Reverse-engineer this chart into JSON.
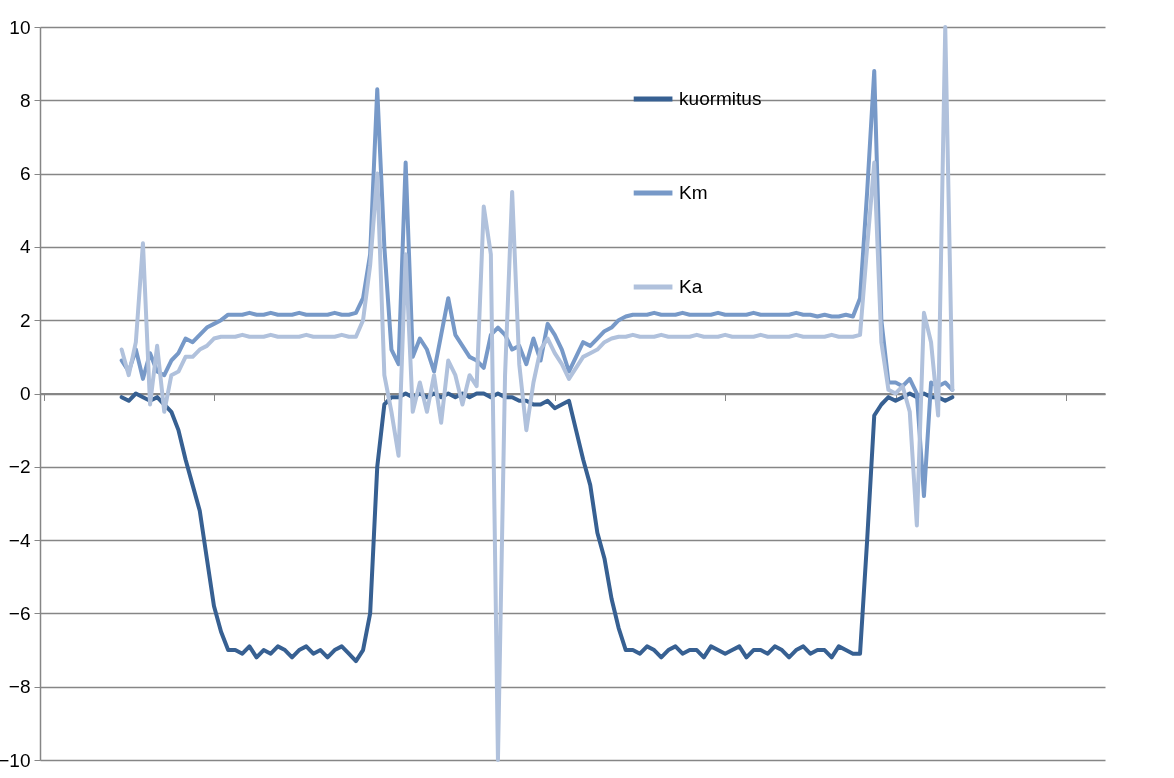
{
  "chart_data": {
    "type": "line",
    "categories": [
      null,
      null,
      null,
      null,
      null,
      null,
      null,
      null,
      null,
      null,
      null,
      null,
      null,
      null,
      null,
      null,
      null,
      null,
      null,
      null,
      null,
      null,
      null,
      null,
      null,
      null,
      null,
      null,
      null,
      null,
      null,
      null,
      null,
      null,
      null,
      null,
      null,
      null,
      null,
      null,
      null,
      null,
      null,
      null,
      null,
      null,
      null,
      null,
      null,
      null,
      null,
      null,
      null,
      null,
      null,
      null,
      null,
      null,
      null,
      null,
      null,
      null,
      null,
      null,
      null,
      null,
      null,
      null,
      null,
      null,
      null,
      null,
      null,
      null,
      null,
      null,
      null,
      null,
      null,
      null,
      null,
      null,
      null,
      null,
      null,
      null,
      null,
      null,
      null,
      null,
      null,
      null,
      null,
      null,
      null,
      null,
      null,
      null,
      null,
      null,
      null,
      null,
      null,
      null,
      null,
      null,
      null,
      null,
      null,
      null,
      null,
      null,
      null,
      null,
      null,
      null,
      null,
      null,
      null,
      null,
      null,
      null,
      null,
      null,
      null,
      null,
      null,
      null,
      null,
      null,
      null,
      null,
      null,
      null,
      null,
      null,
      null,
      null,
      null,
      null,
      null,
      null,
      null,
      null,
      null,
      null,
      null,
      null,
      null,
      null
    ],
    "series": [
      {
        "name": "kuormitus",
        "color": "#376092",
        "values": [
          null,
          null,
          null,
          null,
          null,
          null,
          null,
          null,
          null,
          null,
          null,
          -0.1,
          -0.2,
          0,
          -0.1,
          -0.2,
          -0.1,
          -0.3,
          -0.5,
          -1.0,
          -1.8,
          -2.5,
          -3.2,
          -4.5,
          -5.8,
          -6.5,
          -7.0,
          -7.0,
          -7.1,
          -6.9,
          -7.2,
          -7.0,
          -7.1,
          -6.9,
          -7.0,
          -7.2,
          -7.0,
          -6.9,
          -7.1,
          -7.0,
          -7.2,
          -7.0,
          -6.9,
          -7.1,
          -7.3,
          -7.0,
          -6.0,
          -2.0,
          -0.3,
          -0.1,
          -0.1,
          0,
          -0.1,
          0,
          -0.1,
          0,
          -0.1,
          0,
          -0.1,
          0,
          -0.1,
          0,
          0,
          -0.1,
          0,
          -0.1,
          -0.1,
          -0.2,
          -0.2,
          -0.3,
          -0.3,
          -0.2,
          -0.4,
          -0.3,
          -0.2,
          -1.0,
          -1.8,
          -2.5,
          -3.8,
          -4.5,
          -5.6,
          -6.4,
          -7.0,
          -7.0,
          -7.1,
          -6.9,
          -7.0,
          -7.2,
          -7.0,
          -6.9,
          -7.1,
          -7.0,
          -7.0,
          -7.2,
          -6.9,
          -7.0,
          -7.1,
          -7.0,
          -6.9,
          -7.2,
          -7.0,
          -7.0,
          -7.1,
          -6.9,
          -7.0,
          -7.2,
          -7.0,
          -6.9,
          -7.1,
          -7.0,
          -7.0,
          -7.2,
          -6.9,
          -7.0,
          -7.1,
          -7.1,
          -4.0,
          -0.6,
          -0.3,
          -0.1,
          -0.2,
          -0.1,
          0,
          -0.1,
          0,
          -0.1,
          -0.1,
          -0.2,
          -0.1,
          null,
          null,
          null,
          null,
          null,
          null,
          null,
          null,
          null,
          null,
          null,
          null,
          null,
          null,
          null,
          null,
          null,
          null,
          null,
          null,
          null
        ]
      },
      {
        "name": "Km",
        "color": "#7799c8",
        "values": [
          null,
          null,
          null,
          null,
          null,
          null,
          null,
          null,
          null,
          null,
          null,
          0.9,
          0.6,
          1.2,
          0.4,
          1.1,
          0.6,
          0.5,
          0.9,
          1.1,
          1.5,
          1.4,
          1.6,
          1.8,
          1.9,
          2.0,
          2.15,
          2.15,
          2.15,
          2.2,
          2.15,
          2.15,
          2.2,
          2.15,
          2.15,
          2.15,
          2.2,
          2.15,
          2.15,
          2.15,
          2.15,
          2.2,
          2.15,
          2.15,
          2.2,
          2.6,
          3.8,
          8.3,
          4.0,
          1.2,
          0.8,
          6.3,
          1.0,
          1.5,
          1.2,
          0.6,
          1.6,
          2.6,
          1.6,
          1.3,
          1.0,
          0.9,
          0.7,
          1.6,
          1.8,
          1.6,
          1.2,
          1.3,
          0.8,
          1.5,
          0.9,
          1.9,
          1.6,
          1.2,
          0.6,
          1.0,
          1.4,
          1.3,
          1.5,
          1.7,
          1.8,
          2.0,
          2.1,
          2.15,
          2.15,
          2.15,
          2.2,
          2.15,
          2.15,
          2.15,
          2.2,
          2.15,
          2.15,
          2.15,
          2.15,
          2.2,
          2.15,
          2.15,
          2.15,
          2.15,
          2.2,
          2.15,
          2.15,
          2.15,
          2.15,
          2.15,
          2.2,
          2.15,
          2.15,
          2.1,
          2.15,
          2.1,
          2.1,
          2.15,
          2.1,
          2.6,
          5.5,
          8.8,
          2.0,
          0.3,
          0.3,
          0.2,
          0.4,
          0.0,
          -2.8,
          0.3,
          0.2,
          0.3,
          0.1,
          null,
          null,
          null,
          null,
          null,
          null,
          null,
          null,
          null,
          null,
          null,
          null,
          null,
          null,
          null,
          null,
          null,
          null,
          null,
          null,
          null
        ]
      },
      {
        "name": "Ka",
        "color": "#b0c1dc",
        "values": [
          null,
          null,
          null,
          null,
          null,
          null,
          null,
          null,
          null,
          null,
          null,
          1.2,
          0.5,
          1.4,
          4.1,
          -0.3,
          1.3,
          -0.5,
          0.5,
          0.6,
          1.0,
          1.0,
          1.2,
          1.3,
          1.5,
          1.55,
          1.55,
          1.55,
          1.6,
          1.55,
          1.55,
          1.55,
          1.6,
          1.55,
          1.55,
          1.55,
          1.55,
          1.6,
          1.55,
          1.55,
          1.55,
          1.55,
          1.6,
          1.55,
          1.55,
          2.0,
          3.5,
          6.0,
          0.5,
          -0.5,
          -1.7,
          3.8,
          -0.5,
          0.3,
          -0.5,
          0.5,
          -0.8,
          0.9,
          0.5,
          -0.3,
          0.5,
          0.2,
          5.1,
          3.8,
          -10,
          0.5,
          5.5,
          0.8,
          -1.0,
          0.3,
          1.2,
          1.5,
          1.1,
          0.8,
          0.4,
          0.7,
          1.0,
          1.1,
          1.2,
          1.4,
          1.5,
          1.55,
          1.55,
          1.6,
          1.55,
          1.55,
          1.55,
          1.6,
          1.55,
          1.55,
          1.55,
          1.55,
          1.6,
          1.55,
          1.55,
          1.55,
          1.6,
          1.55,
          1.55,
          1.55,
          1.55,
          1.6,
          1.55,
          1.55,
          1.55,
          1.55,
          1.6,
          1.55,
          1.55,
          1.55,
          1.55,
          1.6,
          1.55,
          1.55,
          1.55,
          1.6,
          4.0,
          6.3,
          1.4,
          0.1,
          0.0,
          0.2,
          -0.5,
          -3.6,
          2.2,
          1.4,
          -0.6,
          10,
          0.1,
          null,
          null,
          null,
          null,
          null,
          null,
          null,
          null,
          null,
          null,
          null,
          null,
          null,
          null,
          null,
          null,
          null,
          null,
          null,
          null,
          null
        ]
      }
    ],
    "ylim": [
      -10,
      10
    ],
    "yticks": [
      -10,
      -8,
      -6,
      -4,
      -2,
      0,
      2,
      4,
      6,
      8,
      10
    ],
    "grid": "y",
    "legend": "top right",
    "tick_labels": "y",
    "marker": "none",
    "line_style": "solid"
  }
}
